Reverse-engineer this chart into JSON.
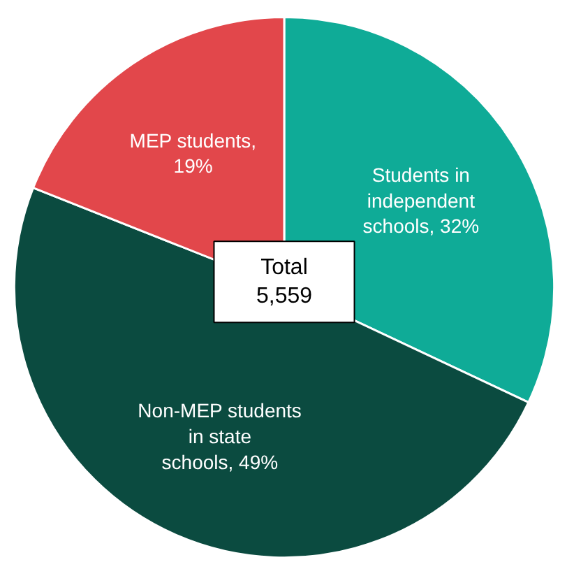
{
  "chart_data": {
    "type": "pie",
    "categories": [
      "Students in independent schools, 32%",
      "Non-MEP students in state schools, 49%",
      "MEP students, 19%"
    ],
    "values": [
      32,
      49,
      19
    ],
    "colors": [
      "#0fab97",
      "#0b4b40",
      "#e2474b"
    ],
    "annotations": [
      "Total 5,559"
    ]
  }
}
